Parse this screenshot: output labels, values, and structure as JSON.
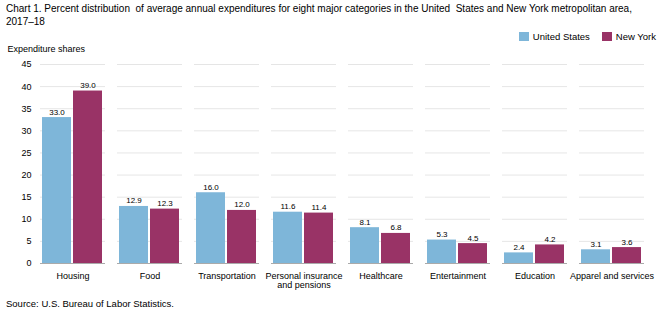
{
  "chart_data": {
    "type": "bar",
    "title": "Chart 1. Percent distribution  of average annual expenditures for eight major categories in the United  States and New York metropolitan area,\n2017–18",
    "ylabel": "Expenditure shares",
    "source": "Source: U.S. Bureau of Labor Statistics.",
    "categories": [
      "Housing",
      "Food",
      "Transportation",
      "Personal insurance\nand pensions",
      "Healthcare",
      "Entertainment",
      "Education",
      "Apparel and services"
    ],
    "series": [
      {
        "name": "United States",
        "color": "#7EB6D9",
        "values": [
          33.0,
          12.9,
          16.0,
          11.6,
          8.1,
          5.3,
          2.4,
          3.1
        ],
        "value_labels": [
          "33.0",
          "12.9",
          "16.0",
          "11.6",
          "8.1",
          "5.3",
          "2.4",
          "3.1"
        ]
      },
      {
        "name": "New York",
        "color": "#993366",
        "values": [
          39.0,
          12.3,
          12.0,
          11.4,
          6.8,
          4.5,
          4.2,
          3.6
        ],
        "value_labels": [
          "39.0",
          "12.3",
          "12.0",
          "11.4",
          "6.8",
          "4.5",
          "4.2",
          "3.6"
        ]
      }
    ],
    "ylim": [
      0,
      45.0
    ],
    "yticks": [
      0,
      5,
      10,
      15,
      20,
      25,
      30,
      35,
      40,
      45
    ],
    "grid": true,
    "legend": "upper right",
    "data_labels": true
  }
}
